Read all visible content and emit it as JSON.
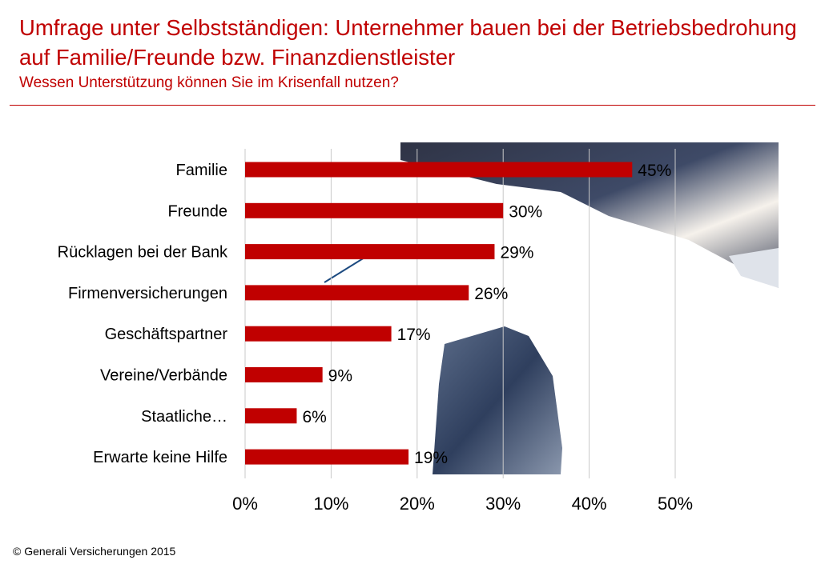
{
  "header": {
    "title": "Umfrage unter Selbstständigen: Unternehmer bauen bei der Betriebsbedrohung auf Familie/Freunde bzw. Finanzdienstleister",
    "subtitle": "Wessen Unterstützung können Sie im Krisenfall nutzen?"
  },
  "footer": {
    "copyright": "© Generali Versicherungen 2015"
  },
  "colors": {
    "accent": "#c00000",
    "bar": "#c00000",
    "grid": "#c8c8c8"
  },
  "chart_data": {
    "type": "bar",
    "orientation": "horizontal",
    "categories": [
      "Familie",
      "Freunde",
      "Rücklagen bei der Bank",
      "Firmenversicherungen",
      "Geschäftspartner",
      "Vereine/Verbände",
      "Staatliche…",
      "Erwarte keine Hilfe"
    ],
    "values": [
      45,
      30,
      29,
      26,
      17,
      9,
      6,
      19
    ],
    "value_labels": [
      "45%",
      "30%",
      "29%",
      "26%",
      "17%",
      "9%",
      "6%",
      "19%"
    ],
    "xlim": [
      0,
      50
    ],
    "x_ticks": [
      0,
      10,
      20,
      30,
      40,
      50
    ],
    "x_tick_labels": [
      "0%",
      "10%",
      "20%",
      "30%",
      "40%",
      "50%"
    ],
    "grid": true
  }
}
